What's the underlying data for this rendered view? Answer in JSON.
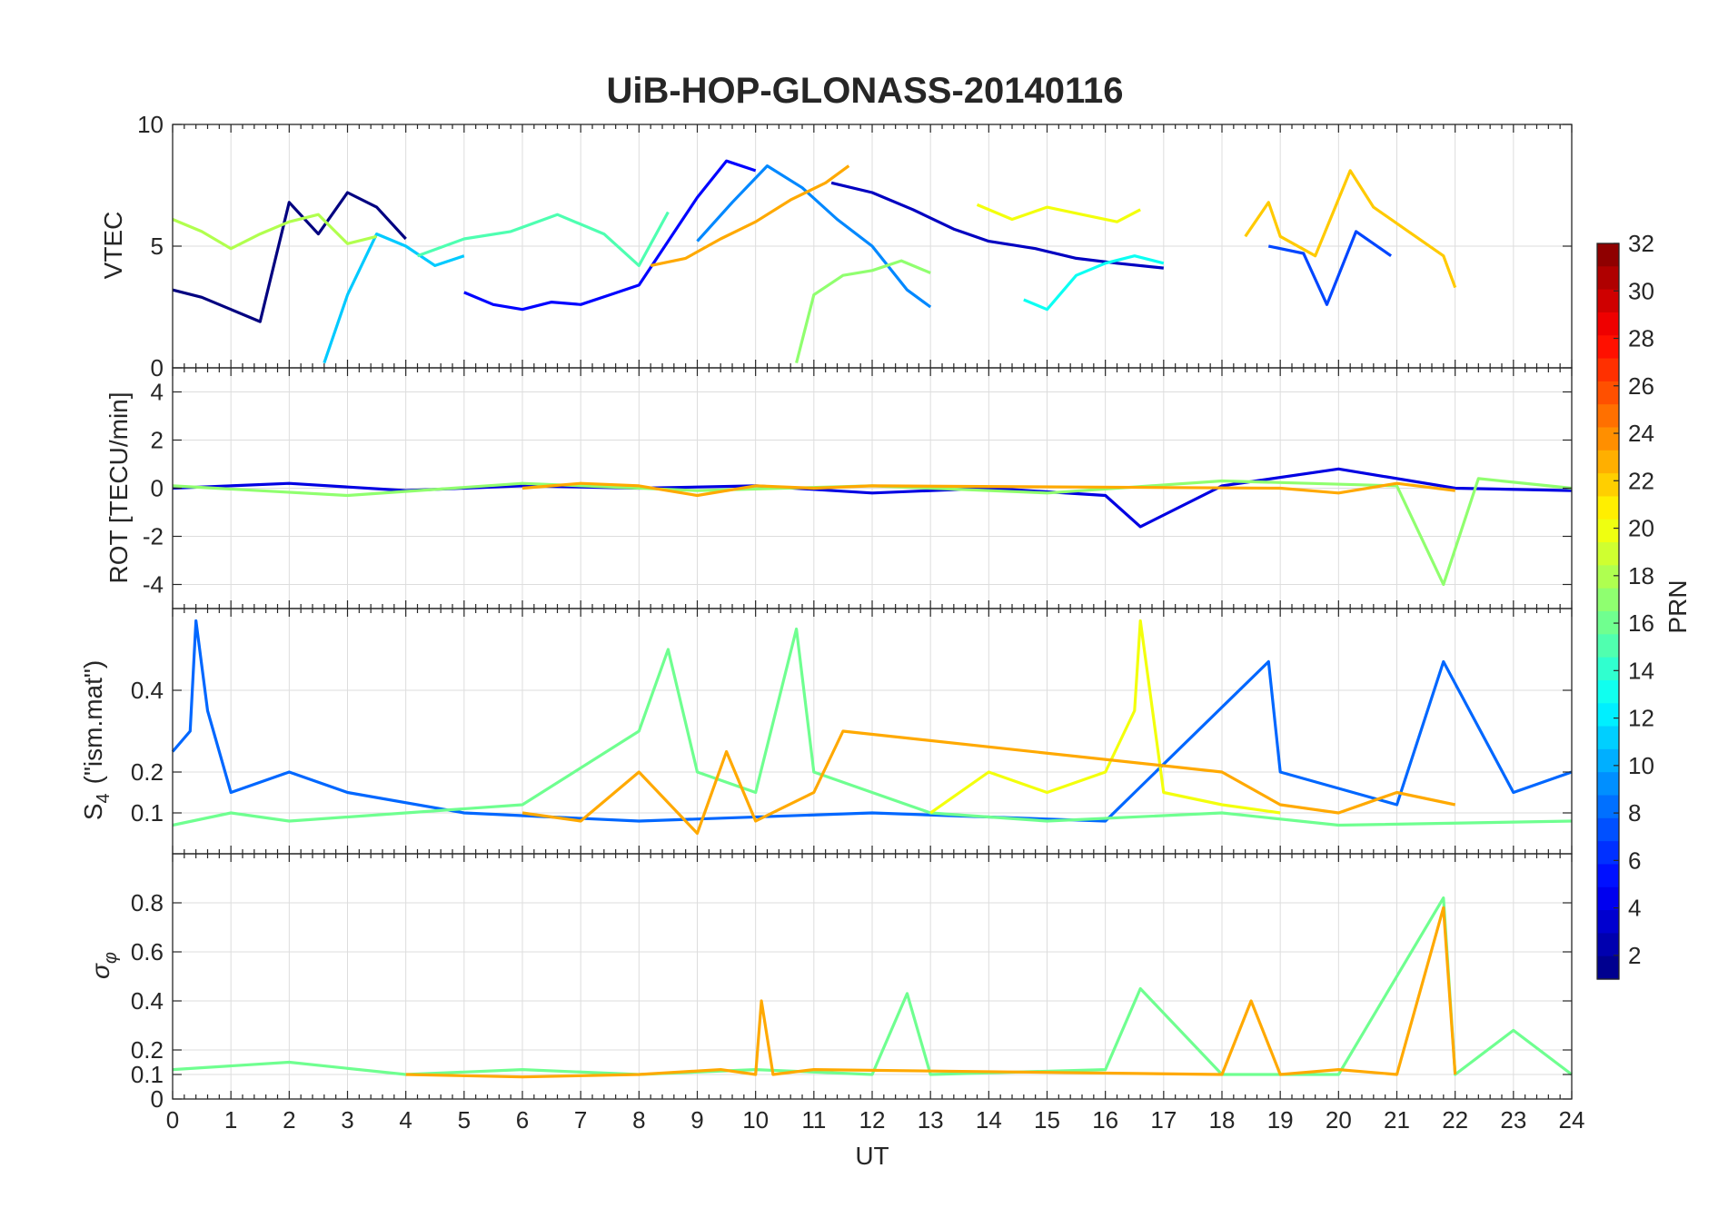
{
  "chart_data": [
    {
      "type": "line",
      "title": "UiB-HOP-GLONASS-20140116",
      "ylabel": "VTEC",
      "xlabel": "",
      "xlim": [
        0,
        24
      ],
      "ylim": [
        0,
        10
      ],
      "yticks": [
        0,
        5,
        10
      ],
      "grid": true,
      "series": [
        {
          "prn": 1,
          "x": [
            0,
            0.5,
            1,
            1.5,
            2,
            2.5,
            3,
            3.5,
            4
          ],
          "y": [
            3.2,
            2.9,
            2.4,
            1.9,
            6.8,
            5.5,
            7.2,
            6.6,
            5.3
          ]
        },
        {
          "prn": 3,
          "x": [
            11.3,
            12,
            12.7,
            13.4,
            14,
            14.8,
            15.5,
            16.2,
            17
          ],
          "y": [
            7.6,
            7.2,
            6.5,
            5.7,
            5.2,
            4.9,
            4.5,
            4.3,
            4.1
          ]
        },
        {
          "prn": 5,
          "x": [
            5,
            5.5,
            6,
            6.5,
            7,
            7.5,
            8,
            8.5,
            9,
            9.5,
            10
          ],
          "y": [
            3.1,
            2.6,
            2.4,
            2.7,
            2.6,
            3.0,
            3.4,
            5.2,
            7.0,
            8.5,
            8.1
          ]
        },
        {
          "prn": 7,
          "x": [
            18.8,
            19.4,
            19.8,
            20.3,
            20.9
          ],
          "y": [
            5.0,
            4.7,
            2.6,
            5.6,
            4.6
          ]
        },
        {
          "prn": 9,
          "x": [
            9,
            9.6,
            10.2,
            10.8,
            11.4,
            12,
            12.6,
            13
          ],
          "y": [
            5.2,
            6.8,
            8.3,
            7.4,
            6.1,
            5.0,
            3.2,
            2.5
          ]
        },
        {
          "prn": 11,
          "x": [
            2.6,
            3,
            3.5,
            4,
            4.5,
            5
          ],
          "y": [
            0.2,
            3.0,
            5.5,
            5.0,
            4.2,
            4.6
          ]
        },
        {
          "prn": 13,
          "x": [
            14.6,
            15,
            15.5,
            16,
            16.5,
            17
          ],
          "y": [
            2.8,
            2.4,
            3.8,
            4.3,
            4.6,
            4.3
          ]
        },
        {
          "prn": 15,
          "x": [
            4.2,
            5,
            5.8,
            6.6,
            7.4,
            8,
            8.5
          ],
          "y": [
            4.6,
            5.3,
            5.6,
            6.3,
            5.5,
            4.2,
            6.4
          ]
        },
        {
          "prn": 17,
          "x": [
            10.7,
            11,
            11.5,
            12,
            12.5,
            13
          ],
          "y": [
            0.2,
            3.0,
            3.8,
            4.0,
            4.4,
            3.9
          ]
        },
        {
          "prn": 18,
          "x": [
            0,
            0.5,
            1,
            1.5,
            2,
            2.5,
            3,
            3.5
          ],
          "y": [
            6.1,
            5.6,
            4.9,
            5.5,
            6.0,
            6.3,
            5.1,
            5.4
          ]
        },
        {
          "prn": 20,
          "x": [
            13.8,
            14.4,
            15,
            15.6,
            16.2,
            16.6
          ],
          "y": [
            6.7,
            6.1,
            6.6,
            6.3,
            6.0,
            6.5
          ]
        },
        {
          "prn": 22,
          "x": [
            18.4,
            18.8,
            19,
            19.6,
            20.2,
            20.6,
            21.2,
            21.8,
            22
          ],
          "y": [
            5.4,
            6.8,
            5.4,
            4.6,
            8.1,
            6.6,
            5.6,
            4.6,
            3.3
          ]
        },
        {
          "prn": 23,
          "x": [
            8.2,
            8.8,
            9.4,
            10,
            10.6,
            11.2,
            11.6
          ],
          "y": [
            4.2,
            4.5,
            5.3,
            6.0,
            6.9,
            7.6,
            8.3
          ]
        }
      ]
    },
    {
      "type": "line",
      "ylabel": "ROT [TECU/min]",
      "xlim": [
        0,
        24
      ],
      "ylim": [
        -5,
        5
      ],
      "yticks": [
        -4,
        -2,
        0,
        2,
        4
      ],
      "grid": true,
      "series": [
        {
          "prn": 4,
          "x": [
            0,
            2,
            4,
            6,
            8,
            10,
            12,
            14,
            16,
            16.6,
            18,
            20,
            22,
            24
          ],
          "y": [
            0,
            0.2,
            -0.1,
            0.1,
            0,
            0.1,
            -0.2,
            0,
            -0.3,
            -1.6,
            0.1,
            0.8,
            0,
            -0.1
          ]
        },
        {
          "prn": 17,
          "x": [
            0,
            3,
            6,
            9,
            12,
            15,
            18,
            21,
            21.8,
            22.4,
            24
          ],
          "y": [
            0.1,
            -0.3,
            0.2,
            -0.1,
            0.1,
            -0.2,
            0.3,
            0.1,
            -4.0,
            0.4,
            0
          ]
        },
        {
          "prn": 23,
          "x": [
            6,
            7,
            8,
            9,
            10,
            11,
            12,
            19,
            20,
            21,
            22
          ],
          "y": [
            0,
            0.2,
            0.1,
            -0.3,
            0.1,
            0,
            0.1,
            0,
            -0.2,
            0.2,
            -0.1
          ]
        }
      ]
    },
    {
      "type": "line",
      "ylabel": "S4 (\"ism.mat\")",
      "ylabel_parts": {
        "main": "S",
        "sub": "4",
        "rest": "(\"ism.mat\")"
      },
      "xlim": [
        0,
        24
      ],
      "ylim": [
        0,
        0.6
      ],
      "yticks": [
        0.1,
        0.2,
        0.4
      ],
      "ytick_labels": [
        "0.1",
        "0.2",
        "0.4"
      ],
      "grid": true,
      "series": [
        {
          "prn": 8,
          "x": [
            0,
            0.3,
            0.4,
            0.6,
            1,
            2,
            3,
            5,
            8,
            12,
            16,
            18.8,
            19,
            21,
            21.8,
            23,
            24
          ],
          "y": [
            0.25,
            0.3,
            0.57,
            0.35,
            0.15,
            0.2,
            0.15,
            0.1,
            0.08,
            0.1,
            0.08,
            0.47,
            0.2,
            0.12,
            0.47,
            0.15,
            0.2
          ]
        },
        {
          "prn": 16,
          "x": [
            0,
            1,
            2,
            4,
            6,
            8,
            8.5,
            9,
            10,
            10.7,
            11,
            13,
            15,
            18,
            20,
            24
          ],
          "y": [
            0.07,
            0.1,
            0.08,
            0.1,
            0.12,
            0.3,
            0.5,
            0.2,
            0.15,
            0.55,
            0.2,
            0.1,
            0.08,
            0.1,
            0.07,
            0.08
          ]
        },
        {
          "prn": 20,
          "x": [
            13,
            14,
            15,
            16,
            16.5,
            16.6,
            17,
            18,
            19
          ],
          "y": [
            0.1,
            0.2,
            0.15,
            0.2,
            0.35,
            0.57,
            0.15,
            0.12,
            0.1
          ]
        },
        {
          "prn": 23,
          "x": [
            6,
            7,
            8,
            9,
            9.5,
            10,
            11,
            11.5,
            18,
            19,
            20,
            21,
            22
          ],
          "y": [
            0.1,
            0.08,
            0.2,
            0.05,
            0.25,
            0.08,
            0.15,
            0.3,
            0.2,
            0.12,
            0.1,
            0.15,
            0.12
          ]
        }
      ]
    },
    {
      "type": "line",
      "ylabel": "σφ",
      "ylabel_parts": {
        "main": "σ",
        "sub": "φ"
      },
      "xlabel": "UT",
      "xlim": [
        0,
        24
      ],
      "ylim": [
        0,
        1
      ],
      "yticks": [
        0,
        0.1,
        0.2,
        0.4,
        0.6,
        0.8
      ],
      "ytick_labels": [
        "0",
        "0.1",
        "0.2",
        "0.4",
        "0.6",
        "0.8"
      ],
      "xticks": [
        0,
        1,
        2,
        3,
        4,
        5,
        6,
        7,
        8,
        9,
        10,
        11,
        12,
        13,
        14,
        15,
        16,
        17,
        18,
        19,
        20,
        21,
        22,
        23,
        24
      ],
      "grid": true,
      "series": [
        {
          "prn": 16,
          "x": [
            0,
            2,
            4,
            6,
            8,
            10,
            12,
            12.6,
            13,
            16,
            16.6,
            18,
            20,
            21.8,
            22,
            23,
            24
          ],
          "y": [
            0.12,
            0.15,
            0.1,
            0.12,
            0.1,
            0.12,
            0.1,
            0.43,
            0.1,
            0.12,
            0.45,
            0.1,
            0.1,
            0.82,
            0.1,
            0.28,
            0.1
          ]
        },
        {
          "prn": 23,
          "x": [
            4,
            6,
            8,
            9.4,
            10,
            10.1,
            10.3,
            11,
            18,
            18.5,
            19,
            20,
            21,
            21.8,
            22
          ],
          "y": [
            0.1,
            0.09,
            0.1,
            0.12,
            0.1,
            0.4,
            0.1,
            0.12,
            0.1,
            0.4,
            0.1,
            0.12,
            0.1,
            0.78,
            0.1
          ]
        }
      ]
    }
  ],
  "colorbar": {
    "label": "PRN",
    "ticks": [
      2,
      4,
      6,
      8,
      10,
      12,
      14,
      16,
      18,
      20,
      22,
      24,
      26,
      28,
      30,
      32
    ],
    "range": [
      1,
      32
    ],
    "colormap": "jet"
  },
  "colors": {
    "axis": "#262626",
    "grid": "#dddddd",
    "background": "#ffffff"
  }
}
